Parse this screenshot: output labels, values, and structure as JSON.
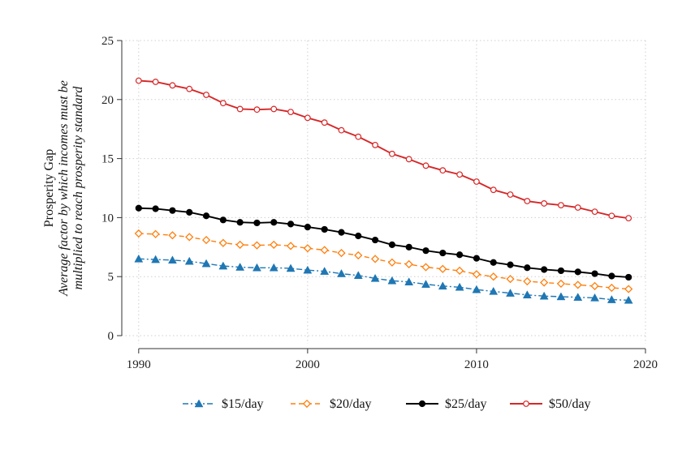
{
  "chart_data": {
    "type": "line",
    "title": "",
    "xlabel": "",
    "ylabel": "Prosperity Gap",
    "ylabel_sub": [
      "Average factor by which incomes must be",
      "multiplied to reach prosperity standard"
    ],
    "xlim": [
      1989,
      2020
    ],
    "ylim": [
      0,
      25
    ],
    "xticks": [
      1990,
      2000,
      2010,
      2020
    ],
    "yticks": [
      0,
      5,
      10,
      15,
      20,
      25
    ],
    "xtick_labels": [
      "1990",
      "2000",
      "2010",
      "2020"
    ],
    "ytick_labels": [
      "0",
      "5",
      "10",
      "15",
      "20",
      "25"
    ],
    "grid": true,
    "legend_position": "bottom",
    "x": [
      1990,
      1991,
      1992,
      1993,
      1994,
      1995,
      1996,
      1997,
      1998,
      1999,
      2000,
      2001,
      2002,
      2003,
      2004,
      2005,
      2006,
      2007,
      2008,
      2009,
      2010,
      2011,
      2012,
      2013,
      2014,
      2015,
      2016,
      2017,
      2018,
      2019
    ],
    "series": [
      {
        "name": "$15/day",
        "color": "#1f77b4",
        "marker": "triangle",
        "dash": "dashdot",
        "values": [
          6.5,
          6.45,
          6.4,
          6.3,
          6.1,
          5.9,
          5.8,
          5.75,
          5.75,
          5.7,
          5.55,
          5.45,
          5.25,
          5.1,
          4.85,
          4.65,
          4.55,
          4.35,
          4.2,
          4.1,
          3.9,
          3.75,
          3.6,
          3.45,
          3.35,
          3.3,
          3.25,
          3.2,
          3.05,
          3.0
        ]
      },
      {
        "name": "$20/day",
        "color": "#ff7f0e",
        "marker": "diamond",
        "dash": "dashed",
        "values": [
          8.65,
          8.6,
          8.5,
          8.35,
          8.1,
          7.85,
          7.7,
          7.65,
          7.7,
          7.6,
          7.4,
          7.25,
          7.0,
          6.8,
          6.5,
          6.2,
          6.05,
          5.8,
          5.65,
          5.5,
          5.2,
          5.0,
          4.8,
          4.6,
          4.5,
          4.4,
          4.3,
          4.2,
          4.05,
          3.95
        ]
      },
      {
        "name": "$25/day",
        "color": "#000000",
        "marker": "dot",
        "dash": "solid",
        "values": [
          10.8,
          10.75,
          10.6,
          10.45,
          10.15,
          9.8,
          9.6,
          9.55,
          9.6,
          9.45,
          9.2,
          9.0,
          8.75,
          8.45,
          8.1,
          7.7,
          7.5,
          7.2,
          7.0,
          6.85,
          6.55,
          6.2,
          6.0,
          5.75,
          5.6,
          5.5,
          5.4,
          5.25,
          5.05,
          4.95
        ]
      },
      {
        "name": "$50/day",
        "color": "#d62728",
        "marker": "circle-open",
        "dash": "solid",
        "values": [
          21.6,
          21.5,
          21.2,
          20.9,
          20.4,
          19.7,
          19.2,
          19.15,
          19.2,
          18.95,
          18.45,
          18.05,
          17.4,
          16.85,
          16.15,
          15.4,
          14.95,
          14.4,
          14.0,
          13.65,
          13.05,
          12.35,
          11.95,
          11.4,
          11.2,
          11.05,
          10.85,
          10.5,
          10.15,
          9.95
        ]
      }
    ]
  }
}
